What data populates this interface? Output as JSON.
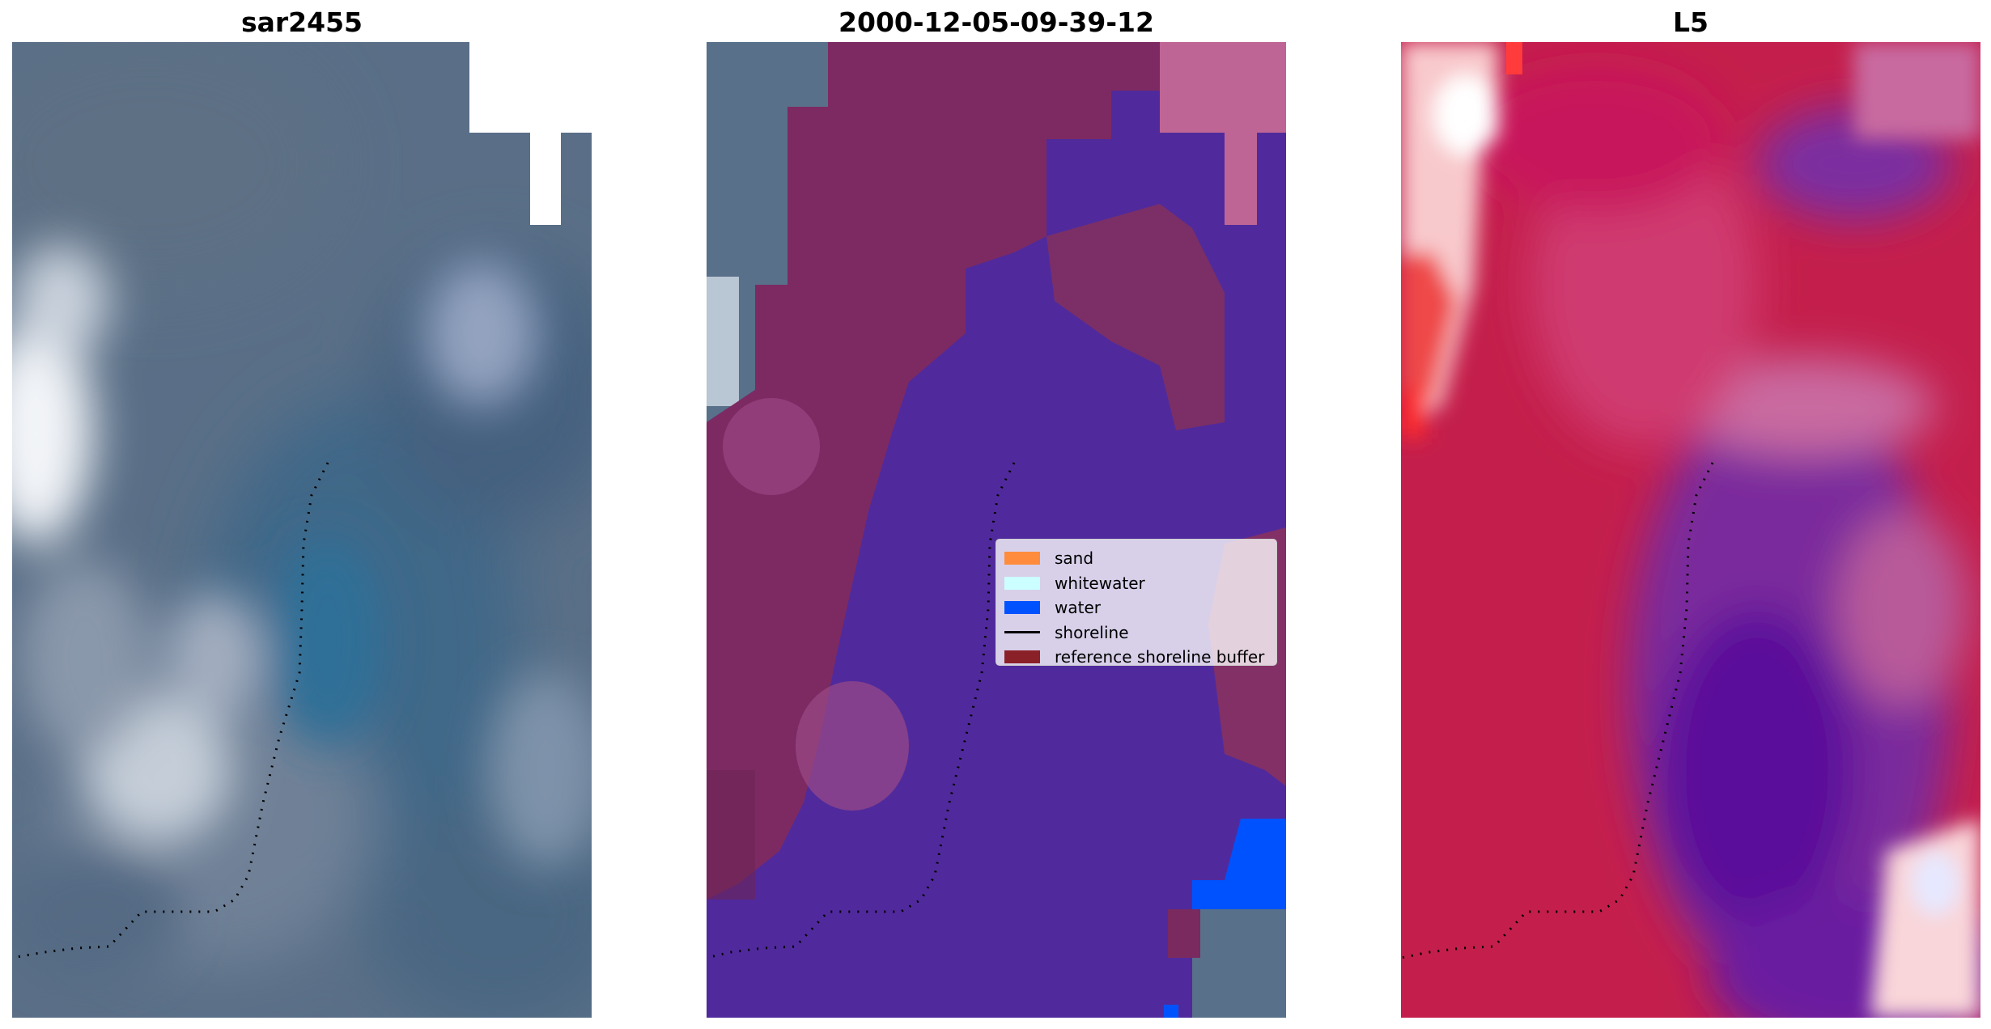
{
  "titles": [
    "sar2455",
    "2000-12-05-09-39-12",
    "L5"
  ],
  "legend": [
    {
      "label": "sand",
      "color": "#ff8c3c",
      "kind": "patch"
    },
    {
      "label": "whitewater",
      "color": "#ccffff",
      "kind": "patch"
    },
    {
      "label": "water",
      "color": "#0052ff",
      "kind": "patch"
    },
    {
      "label": "shoreline",
      "color": "#000000",
      "kind": "line"
    },
    {
      "label": "reference shoreline buffer",
      "color": "#8b2128",
      "kind": "patch"
    }
  ],
  "colors": {
    "rgb_base": "#5a6f87",
    "reference_buffer_overlay": "#7a2a5e",
    "water_overlay": "#4f2a9c",
    "water_class": "#0052ff",
    "index_high": "#c41f4c",
    "index_low": "#5a0f9a"
  },
  "shoreline_marker": "dotted-black"
}
